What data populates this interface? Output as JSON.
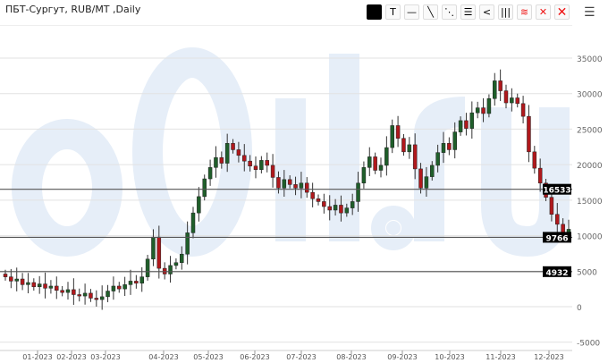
{
  "title": "ПБТ-Сургут, RUB/MT ,Daily",
  "watermark": "eOil.ru",
  "toolbar": [
    {
      "name": "color-swatch-icon",
      "glyph": ""
    },
    {
      "name": "text-tool-icon",
      "glyph": "T"
    },
    {
      "name": "horizontal-line-icon",
      "glyph": "—"
    },
    {
      "name": "trend-line-icon",
      "glyph": "╲"
    },
    {
      "name": "parallel-lines-icon",
      "glyph": "⋱"
    },
    {
      "name": "levels-icon",
      "glyph": "☰"
    },
    {
      "name": "fan-icon",
      "glyph": "<"
    },
    {
      "name": "vertical-lines-icon",
      "glyph": "|||"
    },
    {
      "name": "layers-icon",
      "glyph": "≋"
    },
    {
      "name": "delete-icon",
      "glyph": "✕"
    },
    {
      "name": "delete-all-icon",
      "glyph": "✕"
    }
  ],
  "menu_icon": "hamburger-menu-icon",
  "colors": {
    "up": "#1f5e2a",
    "down": "#b0181c",
    "watermark": "#e6eef8",
    "grid": "#e2e2e2",
    "level_line": "#555555"
  },
  "chart_data": {
    "type": "candlestick",
    "ylim": [
      -5000,
      35000
    ],
    "yticks": [
      35000,
      30000,
      25000,
      20000,
      15000,
      10000,
      5000,
      0,
      -5000
    ],
    "xtick_labels": [
      "01-2023",
      "02-2023",
      "03-2023",
      "04-2023",
      "05-2023",
      "06-2023",
      "07-2023",
      "08-2023",
      "09-2023",
      "10-2023",
      "11-2023",
      "12-2023"
    ],
    "grid": true,
    "close": [
      4200,
      3600,
      3900,
      3100,
      3400,
      2800,
      3200,
      2600,
      2900,
      2300,
      2000,
      2400,
      1700,
      1500,
      1900,
      1200,
      1000,
      1400,
      2200,
      2900,
      2500,
      3100,
      3600,
      3300,
      4200,
      6700,
      9800,
      5400,
      4600,
      5800,
      6200,
      7400,
      10400,
      13200,
      15500,
      18000,
      19600,
      21000,
      20200,
      23000,
      22100,
      21300,
      20500,
      19800,
      19300,
      20600,
      19900,
      18200,
      16700,
      17900,
      17200,
      16700,
      17400,
      16100,
      15200,
      14800,
      14100,
      13600,
      14300,
      13200,
      13900,
      14800,
      17400,
      19600,
      21100,
      19200,
      19900,
      22400,
      25500,
      23700,
      21800,
      22800,
      19400,
      16700,
      18300,
      19900,
      21700,
      23000,
      22100,
      24600,
      26200,
      25100,
      27300,
      28000,
      27200,
      29300,
      31800,
      30400,
      28700,
      29400,
      28600,
      26800,
      21800,
      19500,
      17400,
      15400,
      13000,
      11600,
      10400,
      10900
    ],
    "levels": [
      16533,
      9766,
      4932
    ]
  }
}
